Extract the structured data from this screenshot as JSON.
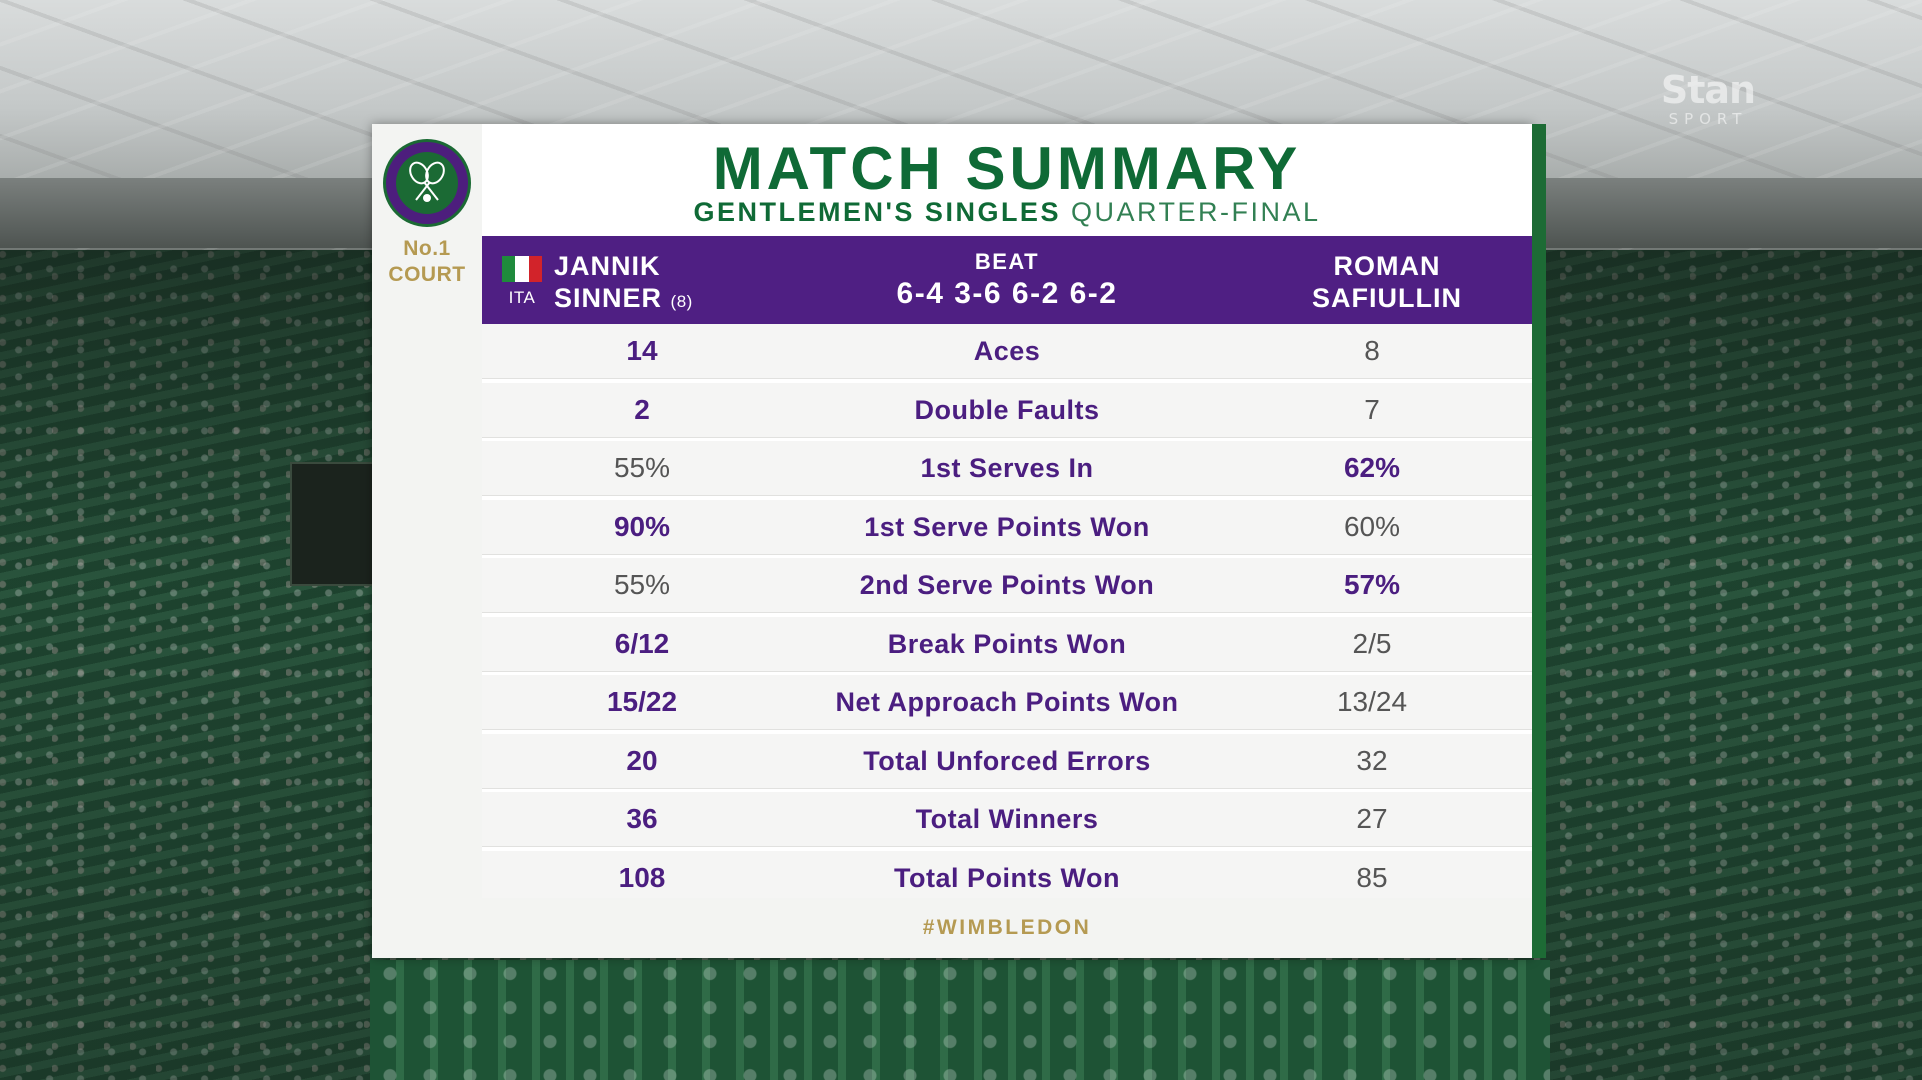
{
  "broadcaster": {
    "name": "Stan",
    "sub": "SPORT"
  },
  "court": {
    "line1": "No.1",
    "line2": "COURT"
  },
  "header": {
    "title": "MATCH SUMMARY",
    "event": "GENTLEMEN'S SINGLES",
    "round": "QUARTER-FINAL"
  },
  "players": {
    "p1_country": "ITA",
    "p1_first": "JANNIK",
    "p1_last": "SINNER",
    "p1_seed": "(8)",
    "result_word": "BEAT",
    "score": "6-4 3-6 6-2 6-2",
    "p2_first": "ROMAN",
    "p2_last": "SAFIULLIN"
  },
  "stats": [
    {
      "label": "Aces",
      "p1": "14",
      "p2": "8",
      "winner": "p1"
    },
    {
      "label": "Double Faults",
      "p1": "2",
      "p2": "7",
      "winner": "p1"
    },
    {
      "label": "1st Serves In",
      "p1": "55%",
      "p2": "62%",
      "winner": "p2"
    },
    {
      "label": "1st Serve Points Won",
      "p1": "90%",
      "p2": "60%",
      "winner": "p1"
    },
    {
      "label": "2nd Serve Points Won",
      "p1": "55%",
      "p2": "57%",
      "winner": "p2"
    },
    {
      "label": "Break Points Won",
      "p1": "6/12",
      "p2": "2/5",
      "winner": "p1"
    },
    {
      "label": "Net Approach Points Won",
      "p1": "15/22",
      "p2": "13/24",
      "winner": "p1"
    },
    {
      "label": "Total Unforced Errors",
      "p1": "20",
      "p2": "32",
      "winner": "p1"
    },
    {
      "label": "Total Winners",
      "p1": "36",
      "p2": "27",
      "winner": "p1"
    },
    {
      "label": "Total Points Won",
      "p1": "108",
      "p2": "85",
      "winner": "p1"
    }
  ],
  "hashtag": "#WIMBLEDON",
  "colors": {
    "purple": "#4f1f83",
    "green": "#0f6a36",
    "gold": "#b59a52"
  }
}
